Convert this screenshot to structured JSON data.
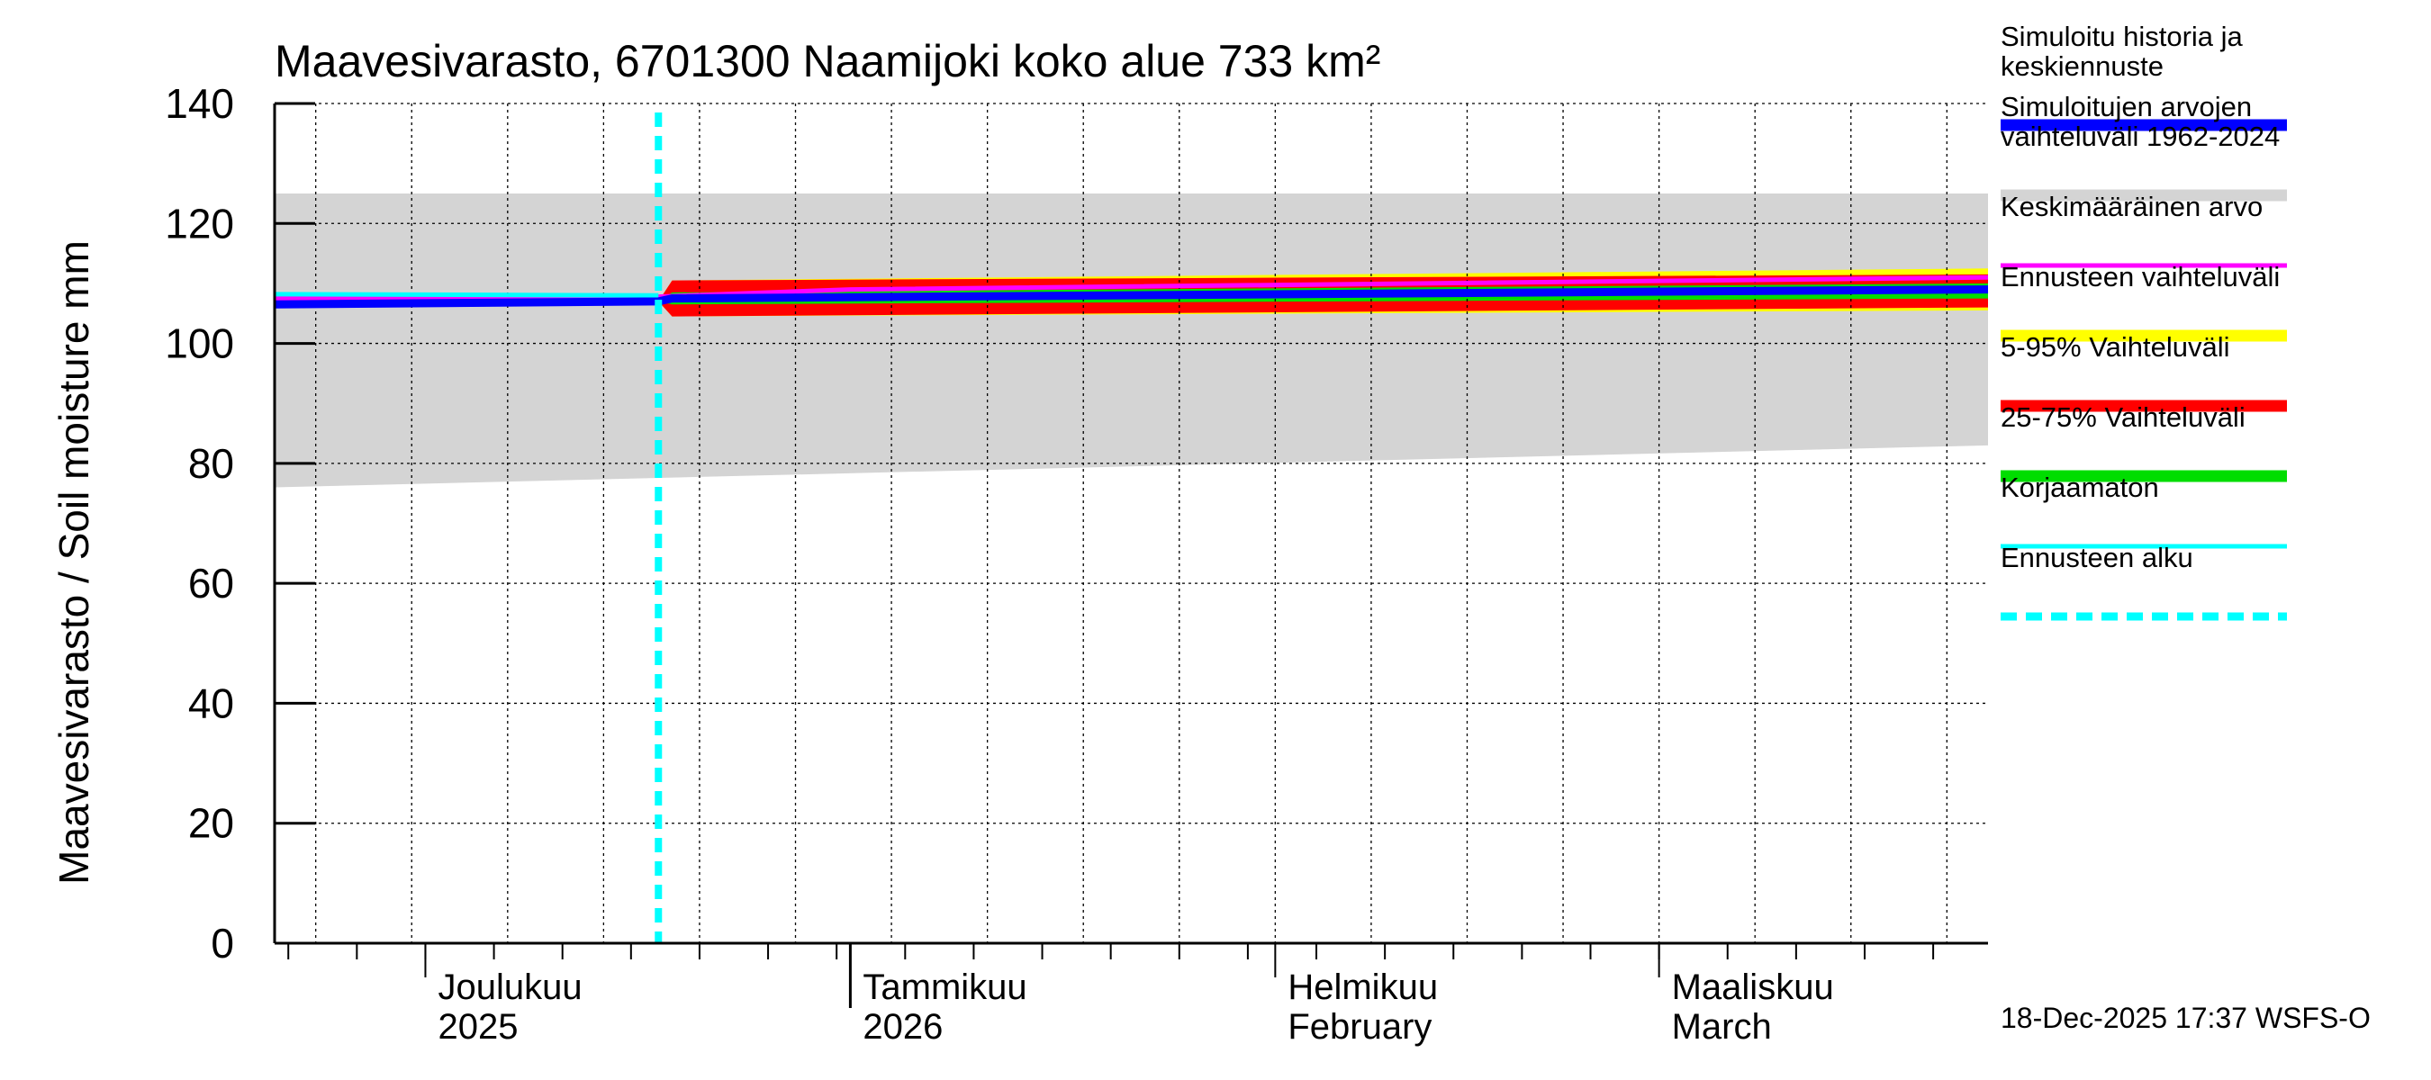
{
  "chart_data": {
    "type": "area",
    "title": "Maavesivarasto, 6701300 Naamijoki koko alue 733 km²",
    "ylabel": "Maavesivarasto / Soil moisture   mm",
    "xlabel": "",
    "ylim": [
      0,
      140
    ],
    "yticks": [
      0,
      20,
      40,
      60,
      80,
      100,
      120,
      140
    ],
    "grid": true,
    "x_domain": [
      "2025-11-20",
      "2026-03-25"
    ],
    "forecast_start": "2025-12-18",
    "month_labels": [
      {
        "date": "2025-12-01",
        "line1": "Joulukuu",
        "line2": "2025"
      },
      {
        "date": "2026-01-01",
        "line1": "Tammikuu",
        "line2": "2026"
      },
      {
        "date": "2026-02-01",
        "line1": "Helmikuu",
        "line2": "February"
      },
      {
        "date": "2026-03-01",
        "line1": "Maaliskuu",
        "line2": "March"
      }
    ],
    "series": [
      {
        "name": "Simuloitujen arvojen vaihteluväli 1962-2024",
        "kind": "band",
        "color": "#d4d4d4",
        "x": [
          "2025-11-20",
          "2026-03-25"
        ],
        "lower": [
          76,
          83
        ],
        "upper": [
          125,
          125
        ]
      },
      {
        "name": "Ennusteen vaihteluväli",
        "kind": "band",
        "color": "#ffff00",
        "x": [
          "2025-12-18",
          "2025-12-19",
          "2026-03-25"
        ],
        "lower": [
          107,
          104.5,
          105.5
        ],
        "upper": [
          107,
          110.5,
          112.5
        ]
      },
      {
        "name": "5-95% Vaihteluväli",
        "kind": "band",
        "color": "#ff0000",
        "x": [
          "2025-12-18",
          "2025-12-19",
          "2026-03-25"
        ],
        "lower": [
          107,
          104.5,
          106
        ],
        "upper": [
          107,
          110.5,
          111.5
        ]
      },
      {
        "name": "25-75% Vaihteluväli",
        "kind": "band",
        "color": "#00dd00",
        "x": [
          "2025-12-18",
          "2025-12-19",
          "2026-03-25"
        ],
        "lower": [
          107,
          106.5,
          107.5
        ],
        "upper": [
          107,
          108.5,
          110
        ]
      },
      {
        "name": "Keskimääräinen arvo",
        "kind": "line",
        "color": "#ff00ff",
        "x": [
          "2025-11-20",
          "2025-12-18",
          "2026-01-01",
          "2026-03-25"
        ],
        "values": [
          107.5,
          107.8,
          109,
          111
        ]
      },
      {
        "name": "Korjaamaton",
        "kind": "line",
        "color": "#00ffff",
        "x": [
          "2025-11-20",
          "2025-12-18"
        ],
        "values": [
          108.2,
          108
        ]
      },
      {
        "name": "Simuloitu historia ja keskiennuste",
        "kind": "line",
        "color": "#0000ff",
        "x": [
          "2025-11-20",
          "2025-12-18",
          "2025-12-19",
          "2026-03-25"
        ],
        "values": [
          106.5,
          107,
          107.5,
          109
        ]
      }
    ],
    "legend": [
      {
        "label_lines": [
          "Simuloitu historia ja",
          "keskiennuste"
        ],
        "color": "#0000ff",
        "style": "solid"
      },
      {
        "label_lines": [
          "Simuloitujen arvojen",
          "vaihteluväli 1962-2024"
        ],
        "color": "#d4d4d4",
        "style": "solid"
      },
      {
        "label_lines": [
          "Keskimääräinen arvo"
        ],
        "color": "#ff00ff",
        "style": "thin"
      },
      {
        "label_lines": [
          "Ennusteen vaihteluväli"
        ],
        "color": "#ffff00",
        "style": "solid"
      },
      {
        "label_lines": [
          "5-95% Vaihteluväli"
        ],
        "color": "#ff0000",
        "style": "solid"
      },
      {
        "label_lines": [
          "25-75% Vaihteluväli"
        ],
        "color": "#00dd00",
        "style": "solid"
      },
      {
        "label_lines": [
          "Korjaamaton"
        ],
        "color": "#00ffff",
        "style": "thin"
      },
      {
        "label_lines": [
          "Ennusteen alku"
        ],
        "color": "#00ffff",
        "style": "dashed"
      }
    ],
    "footer": "18-Dec-2025 17:37 WSFS-O"
  }
}
